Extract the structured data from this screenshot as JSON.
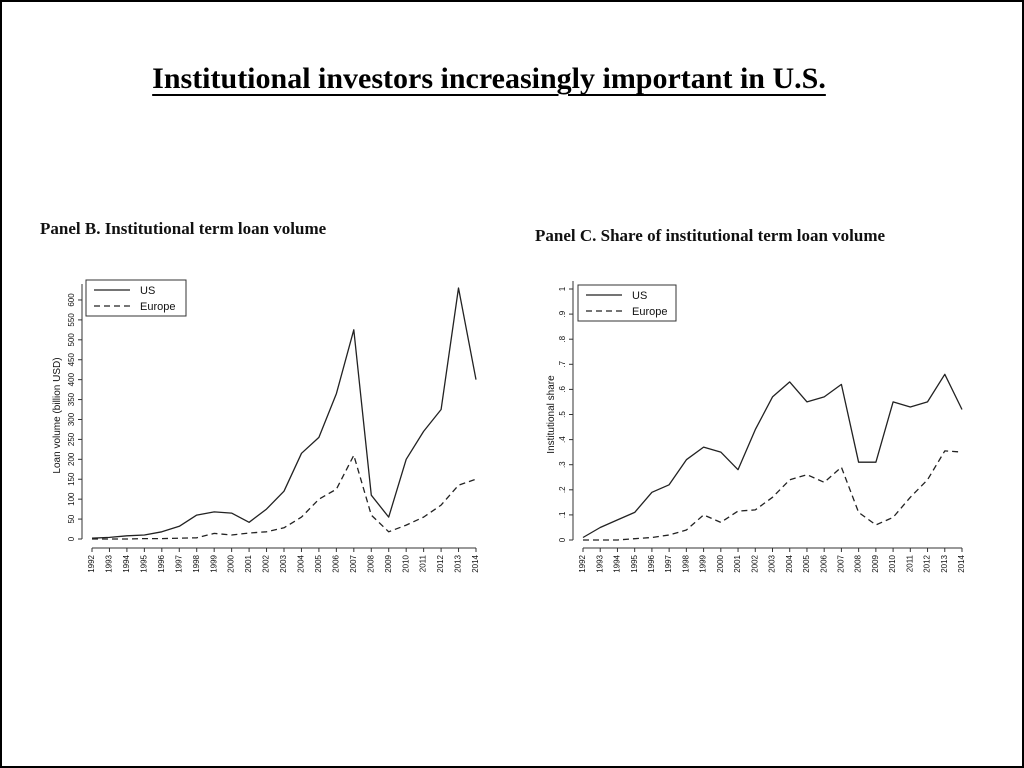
{
  "slide": {
    "title": "Institutional investors increasingly important in U.S."
  },
  "chart_data": [
    {
      "type": "line",
      "title": "Panel B. Institutional term loan volume",
      "xlabel": "",
      "ylabel": "Loan volume (billion USD)",
      "x": [
        "1992",
        "1993",
        "1994",
        "1995",
        "1996",
        "1997",
        "1998",
        "1999",
        "2000",
        "2001",
        "2002",
        "2003",
        "2004",
        "2005",
        "2006",
        "2007",
        "2008",
        "2009",
        "2010",
        "2011",
        "2012",
        "2013",
        "2014"
      ],
      "yticks": [
        "0",
        "50",
        "100",
        "150",
        "200",
        "250",
        "300",
        "350",
        "400",
        "450",
        "500",
        "550",
        "600"
      ],
      "ylim": [
        0,
        620
      ],
      "legend": "top-left",
      "grid": false,
      "series": [
        {
          "name": "US",
          "style": "solid",
          "values": [
            2,
            4,
            8,
            10,
            18,
            32,
            60,
            68,
            65,
            42,
            75,
            120,
            215,
            255,
            365,
            525,
            110,
            55,
            200,
            270,
            325,
            630,
            400
          ]
        },
        {
          "name": "Europe",
          "style": "dashed",
          "values": [
            0,
            0,
            0,
            1,
            1,
            2,
            3,
            14,
            10,
            15,
            18,
            28,
            55,
            100,
            125,
            210,
            60,
            18,
            35,
            55,
            85,
            135,
            150
          ]
        }
      ]
    },
    {
      "type": "line",
      "title": "Panel C. Share of institutional term loan volume",
      "xlabel": "",
      "ylabel": "Institutional share",
      "x": [
        "1992",
        "1993",
        "1994",
        "1995",
        "1996",
        "1997",
        "1998",
        "1999",
        "2000",
        "2001",
        "2002",
        "2003",
        "2004",
        "2005",
        "2006",
        "2007",
        "2008",
        "2009",
        "2010",
        "2011",
        "2012",
        "2013",
        "2014"
      ],
      "yticks": [
        "0",
        ".1",
        ".2",
        ".3",
        ".4",
        ".5",
        ".6",
        ".7",
        ".8",
        ".9",
        "1"
      ],
      "ylim": [
        0,
        1
      ],
      "legend": "top-left",
      "grid": false,
      "series": [
        {
          "name": "US",
          "style": "solid",
          "values": [
            0.01,
            0.05,
            0.08,
            0.11,
            0.19,
            0.22,
            0.32,
            0.37,
            0.35,
            0.28,
            0.44,
            0.57,
            0.63,
            0.55,
            0.57,
            0.62,
            0.31,
            0.31,
            0.55,
            0.53,
            0.55,
            0.66,
            0.52
          ]
        },
        {
          "name": "Europe",
          "style": "dashed",
          "values": [
            0,
            0,
            0,
            0.005,
            0.01,
            0.02,
            0.04,
            0.1,
            0.07,
            0.115,
            0.12,
            0.17,
            0.24,
            0.26,
            0.23,
            0.29,
            0.11,
            0.06,
            0.09,
            0.17,
            0.24,
            0.355,
            0.35
          ]
        }
      ]
    }
  ]
}
